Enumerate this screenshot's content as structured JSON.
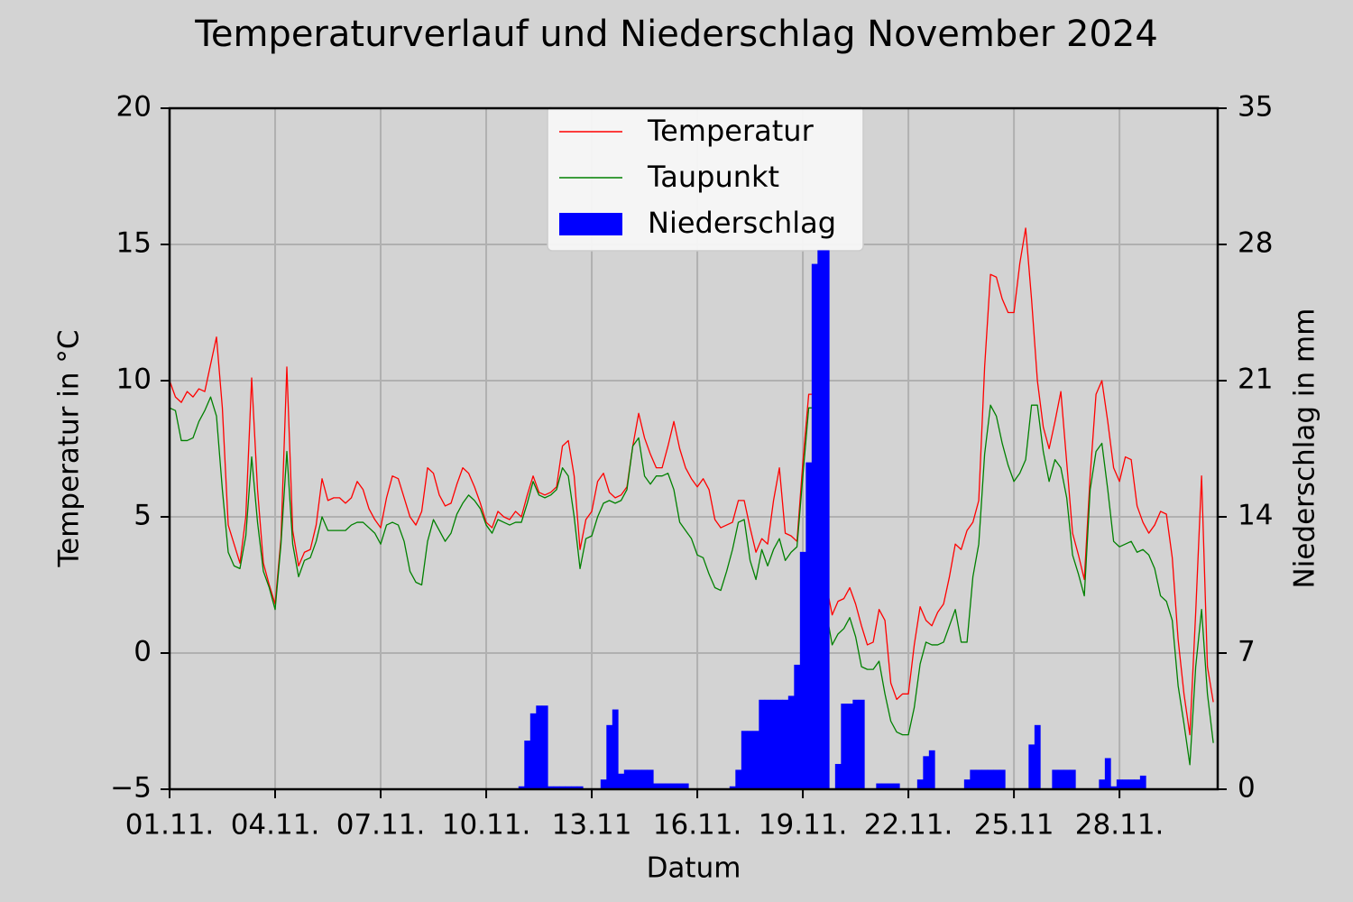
{
  "chart_data": {
    "type": "line",
    "title": "Temperaturverlauf und Niederschlag November 2024",
    "xlabel": "Datum",
    "ylabel": "Temperatur in °C",
    "y2label": "Niederschlag in mm",
    "x": [
      0,
      4,
      8,
      12,
      16,
      20,
      24,
      28,
      32,
      36,
      40,
      44,
      48,
      52,
      56,
      60,
      64,
      68,
      72,
      76,
      80,
      84,
      88,
      92,
      96,
      100,
      104,
      108,
      112,
      116,
      120,
      124,
      128,
      132,
      136,
      140,
      144,
      148,
      152,
      156,
      160,
      164,
      168,
      172,
      176,
      180,
      184,
      188,
      192,
      196,
      200,
      204,
      208,
      212,
      216,
      220,
      224,
      228,
      232,
      236,
      240,
      244,
      248,
      252,
      256,
      260,
      264,
      268,
      272,
      276,
      280,
      284,
      288,
      292,
      296,
      300,
      304,
      308,
      312,
      316,
      320,
      324,
      328,
      332,
      336,
      340,
      344,
      348,
      352,
      356,
      360,
      364,
      368,
      372,
      376,
      380,
      384,
      388,
      392,
      396,
      400,
      404,
      408,
      412,
      416,
      420,
      424,
      428,
      432,
      436,
      440,
      444,
      448,
      452,
      456,
      460,
      464,
      468,
      472,
      476,
      480,
      484,
      488,
      492,
      496,
      500,
      504,
      508,
      512,
      516,
      520,
      524,
      528,
      532,
      536,
      540,
      544,
      548,
      552,
      556,
      560,
      564,
      568,
      572,
      576,
      580,
      584,
      588,
      592,
      596,
      600,
      604,
      608,
      612,
      616,
      620,
      624,
      628,
      632,
      636,
      640,
      644,
      648,
      652,
      656,
      660,
      664,
      668,
      672,
      676,
      680,
      684,
      688,
      692,
      696,
      700,
      704,
      708,
      712
    ],
    "series": [
      {
        "name": "Temperatur",
        "type": "line",
        "color": "red",
        "values": [
          10.0,
          9.4,
          9.2,
          9.6,
          9.4,
          9.7,
          9.6,
          10.6,
          11.6,
          9.0,
          4.7,
          4.0,
          3.3,
          5.0,
          10.1,
          6.0,
          3.3,
          2.5,
          1.8,
          4.2,
          10.5,
          4.5,
          3.2,
          3.7,
          3.8,
          4.7,
          6.4,
          5.6,
          5.7,
          5.7,
          5.5,
          5.7,
          6.3,
          6.0,
          5.3,
          4.9,
          4.6,
          5.7,
          6.5,
          6.4,
          5.7,
          5.0,
          4.7,
          5.2,
          6.8,
          6.6,
          5.8,
          5.4,
          5.5,
          6.2,
          6.8,
          6.6,
          6.1,
          5.5,
          4.8,
          4.6,
          5.2,
          5.0,
          4.9,
          5.2,
          5.0,
          5.8,
          6.5,
          5.9,
          5.8,
          5.9,
          6.1,
          7.6,
          7.8,
          6.5,
          3.8,
          4.9,
          5.2,
          6.3,
          6.6,
          5.9,
          5.7,
          5.8,
          6.1,
          7.6,
          8.8,
          7.9,
          7.3,
          6.8,
          6.8,
          7.6,
          8.5,
          7.5,
          6.8,
          6.4,
          6.1,
          6.4,
          6.0,
          4.9,
          4.6,
          4.7,
          4.8,
          5.6,
          5.6,
          4.6,
          3.7,
          4.2,
          4.0,
          5.6,
          6.8,
          4.4,
          4.3,
          4.1,
          7.0,
          9.5,
          9.5,
          4.0,
          2.5,
          1.4,
          1.9,
          2.0,
          2.4,
          1.8,
          1.0,
          0.3,
          0.4,
          1.6,
          1.2,
          -1.1,
          -1.7,
          -1.5,
          -1.5,
          0.3,
          1.7,
          1.2,
          1.0,
          1.5,
          1.8,
          2.8,
          4.0,
          3.8,
          4.5,
          4.8,
          5.6,
          10.5,
          13.9,
          13.8,
          13.0,
          12.5,
          12.5,
          14.3,
          15.6,
          13.0,
          10.0,
          8.3,
          7.5,
          8.5,
          9.6,
          7.0,
          4.4,
          3.6,
          2.7,
          6.5,
          9.5,
          10.0,
          8.5,
          6.8,
          6.3,
          7.2,
          7.1,
          5.4,
          4.8,
          4.4,
          4.7,
          5.2,
          5.1,
          3.5,
          0.5,
          -1.5,
          -3.0,
          1.5,
          6.5,
          -0.5,
          -1.8
        ]
      },
      {
        "name": "Taupunkt",
        "type": "line",
        "color": "green",
        "values": [
          9.0,
          8.9,
          7.8,
          7.8,
          7.9,
          8.5,
          8.9,
          9.4,
          8.7,
          6.0,
          3.7,
          3.2,
          3.1,
          4.3,
          7.2,
          4.8,
          3.0,
          2.4,
          1.6,
          4.0,
          7.4,
          4.0,
          2.8,
          3.4,
          3.5,
          4.1,
          5.0,
          4.5,
          4.5,
          4.5,
          4.5,
          4.7,
          4.8,
          4.8,
          4.6,
          4.4,
          4.0,
          4.7,
          4.8,
          4.7,
          4.1,
          3.0,
          2.6,
          2.5,
          4.1,
          4.9,
          4.5,
          4.1,
          4.4,
          5.1,
          5.5,
          5.8,
          5.6,
          5.3,
          4.7,
          4.4,
          4.9,
          4.8,
          4.7,
          4.8,
          4.8,
          5.5,
          6.3,
          5.8,
          5.7,
          5.8,
          6.0,
          6.8,
          6.5,
          5.0,
          3.1,
          4.2,
          4.3,
          5.0,
          5.5,
          5.6,
          5.5,
          5.6,
          6.0,
          7.6,
          7.9,
          6.5,
          6.2,
          6.5,
          6.5,
          6.6,
          6.0,
          4.8,
          4.5,
          4.2,
          3.6,
          3.5,
          2.9,
          2.4,
          2.3,
          3.0,
          3.8,
          4.8,
          4.9,
          3.4,
          2.7,
          3.8,
          3.2,
          3.8,
          4.2,
          3.4,
          3.7,
          3.9,
          6.5,
          9.0,
          9.0,
          3.5,
          1.5,
          0.3,
          0.7,
          0.9,
          1.3,
          0.6,
          -0.5,
          -0.6,
          -0.6,
          -0.3,
          -1.5,
          -2.5,
          -2.9,
          -3.0,
          -3.0,
          -2.0,
          -0.4,
          0.4,
          0.3,
          0.3,
          0.4,
          1.0,
          1.6,
          0.4,
          0.4,
          2.8,
          4.0,
          7.3,
          9.1,
          8.7,
          7.7,
          6.9,
          6.3,
          6.6,
          7.1,
          9.1,
          9.1,
          7.4,
          6.3,
          7.1,
          6.8,
          5.7,
          3.6,
          2.9,
          2.1,
          6.0,
          7.4,
          7.7,
          6.0,
          4.1,
          3.9,
          4.0,
          4.1,
          3.7,
          3.8,
          3.6,
          3.1,
          2.1,
          1.9,
          1.2,
          -1.2,
          -2.6,
          -4.1,
          -0.5,
          1.6,
          -1.5,
          -3.3
        ]
      },
      {
        "name": "Niederschlag",
        "type": "bar",
        "axis": "y2",
        "color": "blue",
        "values": [
          0,
          0,
          0,
          0,
          0,
          0,
          0,
          0,
          0,
          0,
          0,
          0,
          0,
          0,
          0,
          0,
          0,
          0,
          0,
          0,
          0,
          0,
          0,
          0,
          0,
          0,
          0,
          0,
          0,
          0,
          0,
          0,
          0,
          0,
          0,
          0,
          0,
          0,
          0,
          0,
          0,
          0,
          0,
          0,
          0,
          0,
          0,
          0,
          0,
          0,
          0,
          0,
          0,
          0,
          0,
          0,
          0,
          0,
          0,
          0,
          0.15,
          2.5,
          3.9,
          4.3,
          4.3,
          0.15,
          0.15,
          0.15,
          0.15,
          0.15,
          0.15,
          0,
          0,
          0,
          0.5,
          3.3,
          4.1,
          0.8,
          1.0,
          1.0,
          1.0,
          1.0,
          1.0,
          0.3,
          0.3,
          0.3,
          0.3,
          0.3,
          0.3,
          0,
          0,
          0,
          0,
          0,
          0,
          0,
          0.15,
          1.0,
          3.0,
          3.0,
          3.0,
          4.6,
          4.6,
          4.6,
          4.6,
          4.6,
          4.8,
          6.4,
          12.2,
          16.8,
          27.0,
          27.7,
          27.7,
          0,
          1.3,
          4.4,
          4.4,
          4.6,
          4.6,
          0,
          0,
          0.3,
          0.3,
          0.3,
          0.3,
          0,
          0,
          0,
          0.5,
          1.7,
          2.0,
          0,
          0,
          0,
          0,
          0,
          0.5,
          1.0,
          1.0,
          1.0,
          1.0,
          1.0,
          1.0,
          0,
          0,
          0,
          0,
          2.3,
          3.3,
          0,
          0,
          1.0,
          1.0,
          1.0,
          1.0,
          0,
          0,
          0,
          0,
          0.5,
          1.6,
          0.15,
          0.5,
          0.5,
          0.5,
          0.5,
          0.7,
          0,
          0,
          0,
          0,
          0,
          0,
          0,
          0,
          0,
          0,
          0,
          0
        ]
      }
    ],
    "xlim": [
      0,
      715
    ],
    "xticks": [
      {
        "value": 0,
        "label": "01.11."
      },
      {
        "value": 72,
        "label": "04.11."
      },
      {
        "value": 144,
        "label": "07.11."
      },
      {
        "value": 216,
        "label": "10.11."
      },
      {
        "value": 288,
        "label": "13.11"
      },
      {
        "value": 360,
        "label": "16.11."
      },
      {
        "value": 432,
        "label": "19.11."
      },
      {
        "value": 504,
        "label": "22.11."
      },
      {
        "value": 576,
        "label": "25.11"
      },
      {
        "value": 648,
        "label": "28.11."
      }
    ],
    "ylim": [
      -5,
      20
    ],
    "yticks": [
      {
        "value": -5,
        "label": "−5"
      },
      0,
      5,
      10,
      15,
      20
    ],
    "y2lim": [
      0,
      35
    ],
    "y2ticks": [
      0,
      7,
      14,
      21,
      28,
      35
    ],
    "grid": true,
    "legend": "upper center"
  }
}
